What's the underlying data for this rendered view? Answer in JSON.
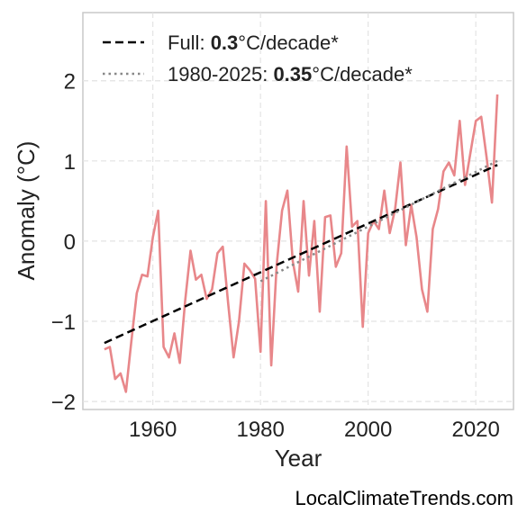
{
  "chart_data": {
    "type": "line",
    "title": "",
    "xlabel": "Year",
    "ylabel": "Anomaly (°C)",
    "xlim": [
      1947,
      2027
    ],
    "ylim": [
      -2.1,
      2.85
    ],
    "grid": true,
    "legend_position": "top-left",
    "x_ticks": [
      {
        "value": 1960,
        "label": "1960"
      },
      {
        "value": 1980,
        "label": "1980"
      },
      {
        "value": 2000,
        "label": "2000"
      },
      {
        "value": 2020,
        "label": "2020"
      }
    ],
    "y_ticks": [
      {
        "value": -2,
        "label": "−2"
      },
      {
        "value": -1,
        "label": "−1"
      },
      {
        "value": 0,
        "label": "0"
      },
      {
        "value": 1,
        "label": "1"
      },
      {
        "value": 2,
        "label": "2"
      }
    ],
    "series": [
      {
        "style": "solid",
        "color": "#e8878a",
        "x": [
          1951,
          1952,
          1953,
          1954,
          1955,
          1956,
          1957,
          1958,
          1959,
          1960,
          1961,
          1962,
          1963,
          1964,
          1965,
          1966,
          1967,
          1968,
          1969,
          1970,
          1971,
          1972,
          1973,
          1974,
          1975,
          1976,
          1977,
          1978,
          1979,
          1980,
          1981,
          1982,
          1983,
          1984,
          1985,
          1986,
          1987,
          1988,
          1989,
          1990,
          1991,
          1992,
          1993,
          1994,
          1995,
          1996,
          1997,
          1998,
          1999,
          2000,
          2001,
          2002,
          2003,
          2004,
          2005,
          2006,
          2007,
          2008,
          2009,
          2010,
          2011,
          2012,
          2013,
          2014,
          2015,
          2016,
          2017,
          2018,
          2019,
          2020,
          2021,
          2022,
          2023,
          2024
        ],
        "y": [
          -1.35,
          -1.32,
          -1.72,
          -1.65,
          -1.88,
          -1.25,
          -0.65,
          -0.42,
          -0.44,
          0.05,
          0.38,
          -1.32,
          -1.45,
          -1.15,
          -1.52,
          -0.75,
          -0.12,
          -0.48,
          -0.42,
          -0.72,
          -0.6,
          -0.15,
          -0.07,
          -0.78,
          -1.45,
          -1.0,
          -0.28,
          -0.36,
          -0.47,
          -1.38,
          0.5,
          -1.55,
          -0.3,
          0.38,
          0.63,
          -0.25,
          -0.63,
          0.5,
          -0.43,
          0.25,
          -0.88,
          0.3,
          0.32,
          -0.32,
          -0.15,
          1.18,
          0.18,
          0.25,
          -1.07,
          0.1,
          0.25,
          0.15,
          0.63,
          0.1,
          0.4,
          0.98,
          -0.05,
          0.45,
          0.05,
          -0.6,
          -0.88,
          0.15,
          0.4,
          0.87,
          0.98,
          0.82,
          1.5,
          0.7,
          1.1,
          1.5,
          1.55,
          1.05,
          0.48,
          1.83
        ]
      },
      {
        "name": "Full",
        "style": "dashed",
        "color": "#000000",
        "x": [
          1951,
          2024
        ],
        "y": [
          -1.27,
          0.95
        ]
      },
      {
        "name": "1980-2025",
        "style": "dotted",
        "color": "#888888",
        "x": [
          1980,
          2024
        ],
        "y": [
          -0.5,
          1.0
        ]
      }
    ],
    "legend": [
      {
        "prefix": "Full: ",
        "bold": "0.3",
        "suffix": "°C/decade*"
      },
      {
        "prefix": "1980-2025: ",
        "bold": "0.35",
        "suffix": "°C/decade*"
      }
    ]
  },
  "watermark": "LocalClimateTrends.com"
}
